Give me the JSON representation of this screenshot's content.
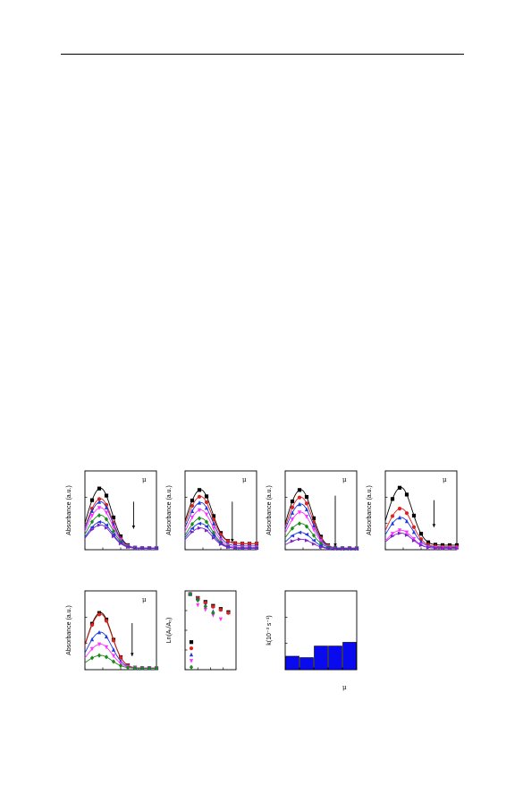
{
  "colors": {
    "black": "#000000",
    "red": "#e0201a",
    "blue": "#1f3bdc",
    "magenta": "#ff33ff",
    "green": "#1a8a1a",
    "purple": "#7a22cc",
    "gray": "#555555",
    "bar": "#0a0aee"
  },
  "chart_data": [
    {
      "id": "a",
      "type": "line",
      "ylabel": "Absorbance (a.u.)",
      "annotation": "μ",
      "xlim": [
        0,
        1
      ],
      "ylim": [
        0,
        1.05
      ],
      "arrow": {
        "x": 0.68,
        "y_from": 0.64,
        "y_to": 0.28
      },
      "series": [
        {
          "color": "black",
          "marker": "square",
          "peak": 0.82,
          "base": 0.02
        },
        {
          "color": "red",
          "marker": "circle",
          "peak": 0.68,
          "base": 0.02
        },
        {
          "color": "blue",
          "marker": "triangle",
          "peak": 0.64,
          "base": 0.02
        },
        {
          "color": "magenta",
          "marker": "inverted-triangle",
          "peak": 0.56,
          "base": 0.02
        },
        {
          "color": "green",
          "marker": "diamond",
          "peak": 0.46,
          "base": 0.02
        },
        {
          "color": "blue",
          "marker": "triangle-left",
          "peak": 0.37,
          "base": 0.02
        },
        {
          "color": "purple",
          "marker": "triangle-right",
          "peak": 0.33,
          "base": 0.02
        }
      ]
    },
    {
      "id": "b",
      "type": "line",
      "ylabel": "Absorbance (a.u.)",
      "annotation": "μ",
      "xlim": [
        0,
        1
      ],
      "ylim": [
        0,
        1.05
      ],
      "arrow": {
        "x": 0.66,
        "y_from": 0.64,
        "y_to": 0.1
      },
      "series": [
        {
          "color": "black",
          "marker": "square",
          "peak": 0.8,
          "base": 0.08
        },
        {
          "color": "red",
          "marker": "circle",
          "peak": 0.71,
          "base": 0.08
        },
        {
          "color": "blue",
          "marker": "triangle",
          "peak": 0.63,
          "base": 0.05
        },
        {
          "color": "magenta",
          "marker": "inverted-triangle",
          "peak": 0.53,
          "base": 0.03
        },
        {
          "color": "green",
          "marker": "diamond",
          "peak": 0.42,
          "base": 0.02
        },
        {
          "color": "blue",
          "marker": "triangle-left",
          "peak": 0.35,
          "base": 0.02
        },
        {
          "color": "purple",
          "marker": "triangle-right",
          "peak": 0.29,
          "base": 0.02
        }
      ]
    },
    {
      "id": "c",
      "type": "line",
      "ylabel": "Absorbance (a.u.)",
      "annotation": "μ",
      "xlim": [
        0,
        1
      ],
      "ylim": [
        0,
        1.05
      ],
      "arrow": {
        "x": 0.7,
        "y_from": 0.72,
        "y_to": 0.04
      },
      "series": [
        {
          "color": "black",
          "marker": "square",
          "peak": 0.8,
          "base": 0.02
        },
        {
          "color": "red",
          "marker": "circle",
          "peak": 0.7,
          "base": 0.02
        },
        {
          "color": "blue",
          "marker": "triangle",
          "peak": 0.61,
          "base": 0.02
        },
        {
          "color": "magenta",
          "marker": "inverted-triangle",
          "peak": 0.5,
          "base": 0.02
        },
        {
          "color": "green",
          "marker": "diamond",
          "peak": 0.35,
          "base": 0.02
        },
        {
          "color": "blue",
          "marker": "triangle-left",
          "peak": 0.23,
          "base": 0.01
        },
        {
          "color": "purple",
          "marker": "triangle-right",
          "peak": 0.14,
          "base": 0.01
        }
      ]
    },
    {
      "id": "d",
      "type": "line",
      "ylabel": "Absorbance (a.u.)",
      "annotation": "μ",
      "xlim": [
        0,
        1
      ],
      "ylim": [
        0,
        1.05
      ],
      "arrow": {
        "x": 0.68,
        "y_from": 0.66,
        "y_to": 0.3
      },
      "series": [
        {
          "color": "black",
          "marker": "square",
          "peak": 0.83,
          "base": 0.06
        },
        {
          "color": "red",
          "marker": "circle",
          "peak": 0.55,
          "base": 0.04
        },
        {
          "color": "blue",
          "marker": "triangle",
          "peak": 0.43,
          "base": 0.03
        },
        {
          "color": "magenta",
          "marker": "inverted-triangle",
          "peak": 0.26,
          "base": 0.02
        },
        {
          "color": "purple",
          "marker": "triangle-right",
          "peak": 0.22,
          "base": 0.02
        }
      ]
    },
    {
      "id": "e",
      "type": "line",
      "ylabel": "Absorbance (a.u.)",
      "annotation": "μ",
      "xlim": [
        0,
        1
      ],
      "ylim": [
        0,
        1.05
      ],
      "arrow": {
        "x": 0.66,
        "y_from": 0.62,
        "y_to": 0.18
      },
      "series": [
        {
          "color": "black",
          "marker": "square",
          "peak": 0.76,
          "base": 0.02
        },
        {
          "color": "red",
          "marker": "circle",
          "peak": 0.74,
          "base": 0.02
        },
        {
          "color": "blue",
          "marker": "triangle",
          "peak": 0.5,
          "base": 0.02
        },
        {
          "color": "magenta",
          "marker": "inverted-triangle",
          "peak": 0.34,
          "base": 0.02
        },
        {
          "color": "green",
          "marker": "diamond",
          "peak": 0.19,
          "base": 0.02
        }
      ]
    },
    {
      "id": "f",
      "type": "scatter",
      "ylabel": "Ln(Aₜ/A₀)",
      "xlim": [
        0,
        1
      ],
      "ylim": [
        -1,
        0
      ],
      "series": [
        {
          "color": "black",
          "marker": "square",
          "x": [
            0.1,
            0.25,
            0.4,
            0.55,
            0.7,
            0.85
          ],
          "y": [
            -0.04,
            -0.09,
            -0.14,
            -0.19,
            -0.23,
            -0.27
          ]
        },
        {
          "color": "red",
          "marker": "circle",
          "x": [
            0.1,
            0.25,
            0.4,
            0.55,
            0.7,
            0.85
          ],
          "y": [
            -0.04,
            -0.09,
            -0.15,
            -0.2,
            -0.24,
            -0.28
          ]
        },
        {
          "color": "blue",
          "marker": "triangle",
          "x": [
            0.1,
            0.25,
            0.4,
            0.55
          ],
          "y": [
            -0.04,
            -0.1,
            -0.18,
            -0.26
          ]
        },
        {
          "color": "magenta",
          "marker": "inverted-triangle",
          "x": [
            0.1,
            0.25,
            0.4,
            0.55,
            0.7
          ],
          "y": [
            -0.04,
            -0.18,
            -0.24,
            -0.31,
            -0.36
          ]
        },
        {
          "color": "green",
          "marker": "diamond",
          "x": [
            0.1,
            0.25,
            0.4,
            0.55
          ],
          "y": [
            -0.04,
            -0.12,
            -0.2,
            -0.28
          ]
        }
      ],
      "legend": {
        "placement": "bottom-left",
        "entries": [
          {
            "color": "black",
            "marker": "square"
          },
          {
            "color": "red",
            "marker": "circle"
          },
          {
            "color": "blue",
            "marker": "triangle"
          },
          {
            "color": "magenta",
            "marker": "inverted-triangle"
          },
          {
            "color": "green",
            "marker": "diamond"
          }
        ]
      }
    },
    {
      "id": "g",
      "type": "bar",
      "ylabel": "k(10⁻³ s⁻¹)",
      "xlabel": "μ",
      "categories": [
        "1",
        "2",
        "3",
        "4",
        "5"
      ],
      "values": [
        1.45,
        1.3,
        2.55,
        2.55,
        2.95
      ],
      "ylim": [
        0,
        8.5
      ]
    }
  ]
}
